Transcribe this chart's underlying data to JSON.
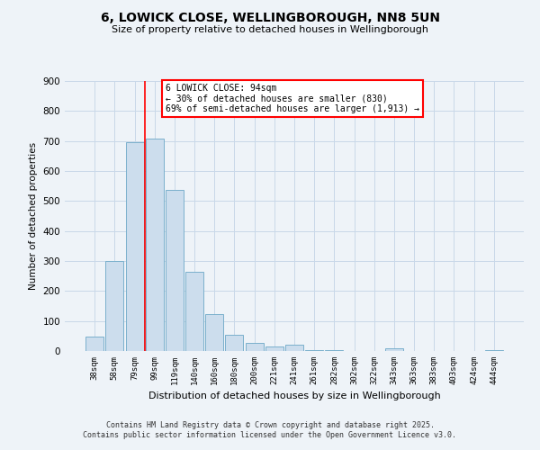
{
  "title": "6, LOWICK CLOSE, WELLINGBOROUGH, NN8 5UN",
  "subtitle": "Size of property relative to detached houses in Wellingborough",
  "xlabel": "Distribution of detached houses by size in Wellingborough",
  "ylabel": "Number of detached properties",
  "bar_labels": [
    "38sqm",
    "58sqm",
    "79sqm",
    "99sqm",
    "119sqm",
    "140sqm",
    "160sqm",
    "180sqm",
    "200sqm",
    "221sqm",
    "241sqm",
    "261sqm",
    "282sqm",
    "302sqm",
    "322sqm",
    "343sqm",
    "363sqm",
    "383sqm",
    "403sqm",
    "424sqm",
    "444sqm"
  ],
  "bar_values": [
    47,
    300,
    695,
    708,
    537,
    265,
    124,
    55,
    28,
    15,
    20,
    3,
    2,
    1,
    0,
    8,
    0,
    0,
    0,
    0,
    2
  ],
  "bar_color": "#ccdded",
  "bar_edge_color": "#7ab0cc",
  "grid_color": "#c8d8e8",
  "background_color": "#eef3f8",
  "vline_color": "red",
  "vline_pos": 2.5,
  "ylim": [
    0,
    900
  ],
  "yticks": [
    0,
    100,
    200,
    300,
    400,
    500,
    600,
    700,
    800,
    900
  ],
  "annotation_line1": "6 LOWICK CLOSE: 94sqm",
  "annotation_line2": "← 30% of detached houses are smaller (830)",
  "annotation_line3": "69% of semi-detached houses are larger (1,913) →",
  "footnote1": "Contains HM Land Registry data © Crown copyright and database right 2025.",
  "footnote2": "Contains public sector information licensed under the Open Government Licence v3.0."
}
